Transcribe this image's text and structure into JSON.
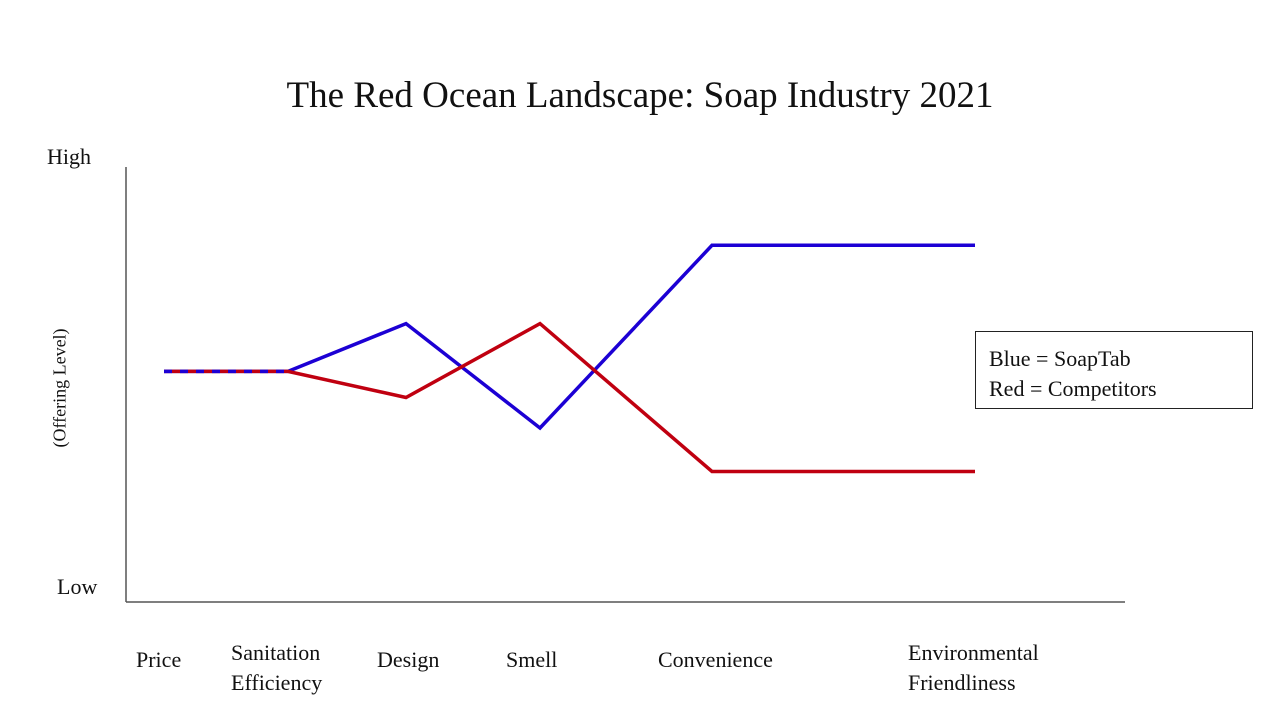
{
  "chart_data": {
    "type": "line",
    "title": "The Red Ocean Landscape: Soap Industry 2021",
    "ylabel": "(Offering Level)",
    "y_ticks": [
      "High",
      "Low"
    ],
    "ylim": [
      0,
      10
    ],
    "categories": [
      "Price",
      "Sanitation\nEfficiency",
      "Design",
      "Smell",
      "Convenience",
      "Environmental\nFriendliness"
    ],
    "series": [
      {
        "name": "SoapTab",
        "color": "#1c00d4",
        "points": [
          {
            "x": "Price",
            "y": 5.3
          },
          {
            "x": "Sanitation\nEfficiency",
            "y": 5.3
          },
          {
            "x": "Design",
            "y": 6.4
          },
          {
            "x": "Smell",
            "y": 4.0
          },
          {
            "x": "Convenience",
            "y": 8.2
          },
          {
            "x": "Environmental\nFriendliness",
            "y": 8.2
          }
        ]
      },
      {
        "name": "Competitors",
        "color": "#c00010",
        "points": [
          {
            "x": "Price",
            "y": 5.3
          },
          {
            "x": "Sanitation\nEfficiency",
            "y": 5.3
          },
          {
            "x": "Design",
            "y": 4.7
          },
          {
            "x": "Smell",
            "y": 6.4
          },
          {
            "x": "Convenience",
            "y": 3.0
          },
          {
            "x": "Environmental\nFriendliness",
            "y": 3.0
          }
        ]
      }
    ],
    "legend": [
      "Blue = SoapTab",
      "Red = Competitors"
    ],
    "legend_position": "right",
    "grid": false
  }
}
